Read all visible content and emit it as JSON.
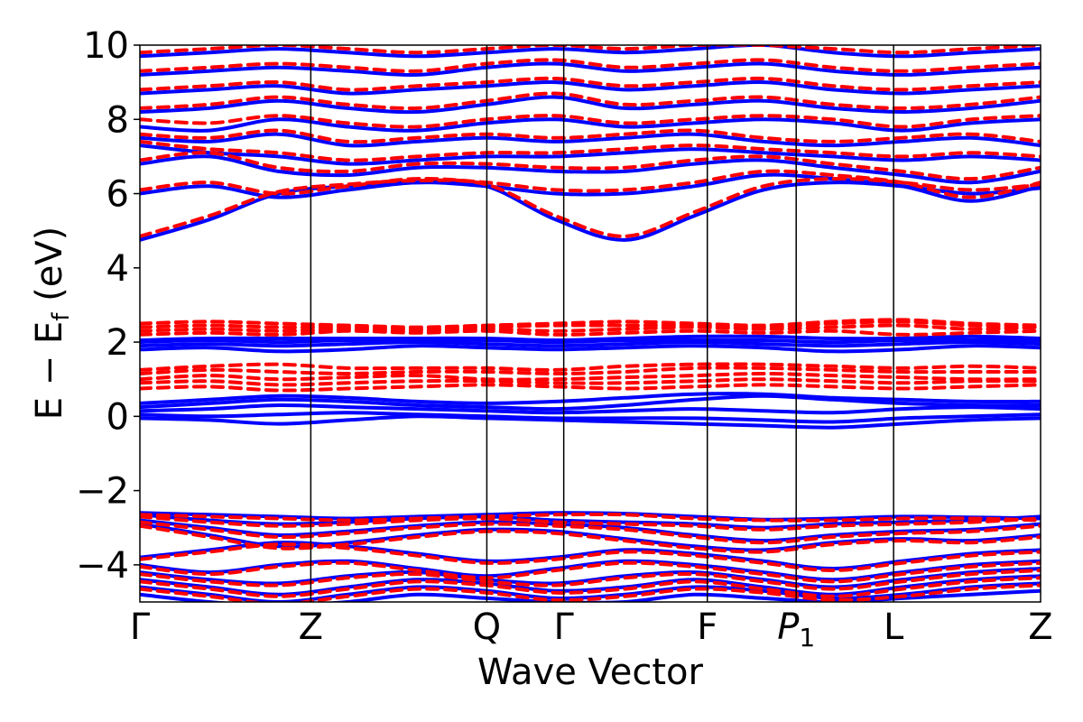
{
  "chart_data": {
    "type": "line",
    "xlabel": "Wave Vector",
    "ylabel": "E − E",
    "ylabel_sub": "f",
    "ylabel_unit": " (eV)",
    "ylim": [
      -5,
      10
    ],
    "yticks": [
      {
        "value": -4,
        "label": "−4"
      },
      {
        "value": -2,
        "label": "−2"
      },
      {
        "value": 0,
        "label": "0"
      },
      {
        "value": 2,
        "label": "2"
      },
      {
        "value": 4,
        "label": "4"
      },
      {
        "value": 6,
        "label": "6"
      },
      {
        "value": 8,
        "label": "8"
      },
      {
        "value": 10,
        "label": "10"
      }
    ],
    "kpath_positions": [
      0,
      1,
      2.03,
      2.48,
      3.32,
      3.84,
      4.41,
      5.27
    ],
    "xticks": [
      "Γ",
      "Z",
      "Q",
      "Γ",
      "F",
      "P",
      "L",
      "Z"
    ],
    "xtick_subscripts": [
      "",
      "",
      "",
      "",
      "",
      "1",
      "",
      ""
    ],
    "grid": false,
    "legend": "none",
    "series": [
      {
        "color": "#0000ff",
        "style": "solid",
        "valence_lines": [
          [
            -2.6,
            -2.65,
            -2.7,
            -2.75,
            -2.7,
            -2.65,
            -2.6,
            -2.62,
            -2.7,
            -2.78,
            -2.75,
            -2.7,
            -2.72,
            -2.75
          ],
          [
            -2.65,
            -2.8,
            -2.9,
            -2.85,
            -2.75,
            -2.7,
            -2.8,
            -2.85,
            -2.9,
            -3.0,
            -2.9,
            -2.85,
            -2.8,
            -2.7
          ],
          [
            -2.8,
            -3.0,
            -3.2,
            -3.1,
            -2.95,
            -2.85,
            -2.9,
            -3.0,
            -3.2,
            -3.35,
            -3.2,
            -3.1,
            -3.05,
            -2.9
          ],
          [
            -2.9,
            -3.2,
            -3.5,
            -3.4,
            -3.2,
            -3.05,
            -3.1,
            -3.3,
            -3.5,
            -3.6,
            -3.4,
            -3.3,
            -3.35,
            -3.2
          ],
          [
            -3.8,
            -3.6,
            -3.4,
            -3.5,
            -3.7,
            -3.9,
            -3.8,
            -3.6,
            -3.7,
            -3.9,
            -4.1,
            -3.9,
            -3.7,
            -3.6
          ],
          [
            -4.0,
            -4.2,
            -4.0,
            -3.9,
            -4.1,
            -4.3,
            -4.1,
            -3.9,
            -4.0,
            -4.2,
            -4.4,
            -4.2,
            -4.0,
            -3.9
          ],
          [
            -4.2,
            -4.4,
            -4.5,
            -4.3,
            -4.2,
            -4.4,
            -4.5,
            -4.3,
            -4.2,
            -4.4,
            -4.6,
            -4.4,
            -4.2,
            -4.1
          ],
          [
            -4.4,
            -4.6,
            -4.8,
            -4.6,
            -4.4,
            -4.5,
            -4.7,
            -4.6,
            -4.4,
            -4.6,
            -4.8,
            -4.6,
            -4.4,
            -4.3
          ],
          [
            -4.6,
            -4.8,
            -5.0,
            -4.8,
            -4.6,
            -4.7,
            -4.9,
            -4.8,
            -4.6,
            -4.7,
            -4.9,
            -4.8,
            -4.6,
            -4.5
          ],
          [
            -4.8,
            -5.0,
            -5.1,
            -5.0,
            -4.8,
            -4.9,
            -5.0,
            -5.0,
            -4.8,
            -4.9,
            -5.0,
            -4.9,
            -4.8,
            -4.7
          ]
        ],
        "mid_lines": [
          [
            -0.05,
            -0.1,
            -0.2,
            -0.1,
            0.0,
            -0.05,
            -0.1,
            -0.15,
            -0.2,
            -0.25,
            -0.3,
            -0.2,
            -0.1,
            -0.05
          ],
          [
            0.05,
            0.0,
            0.05,
            0.1,
            0.05,
            0.0,
            -0.05,
            -0.05,
            -0.05,
            -0.1,
            -0.15,
            -0.05,
            0.0,
            0.05
          ],
          [
            0.15,
            0.2,
            0.3,
            0.25,
            0.2,
            0.15,
            0.1,
            0.15,
            0.2,
            0.15,
            0.1,
            0.2,
            0.25,
            0.2
          ],
          [
            0.25,
            0.35,
            0.45,
            0.4,
            0.3,
            0.25,
            0.2,
            0.3,
            0.45,
            0.55,
            0.45,
            0.35,
            0.3,
            0.3
          ],
          [
            0.35,
            0.45,
            0.55,
            0.5,
            0.4,
            0.35,
            0.4,
            0.5,
            0.6,
            0.6,
            0.5,
            0.45,
            0.4,
            0.4
          ]
        ],
        "upper_mid_lines": [
          [
            1.8,
            1.85,
            1.75,
            1.8,
            1.9,
            1.85,
            1.8,
            1.85,
            1.9,
            1.85,
            1.75,
            1.8,
            1.9,
            1.85
          ],
          [
            1.9,
            1.95,
            1.9,
            1.95,
            2.0,
            1.95,
            1.9,
            1.95,
            2.0,
            1.95,
            1.9,
            1.95,
            2.0,
            1.95
          ],
          [
            2.0,
            2.05,
            2.0,
            2.05,
            2.05,
            2.05,
            2.0,
            2.05,
            2.05,
            2.05,
            2.0,
            2.05,
            2.05,
            2.05
          ],
          [
            2.05,
            2.1,
            2.1,
            2.1,
            2.1,
            2.1,
            2.05,
            2.1,
            2.15,
            2.15,
            2.1,
            2.1,
            2.15,
            2.1
          ]
        ],
        "conduction_lines": [
          [
            4.75,
            5.3,
            6.0,
            6.2,
            6.3,
            6.2,
            5.3,
            4.75,
            5.4,
            6.1,
            6.3,
            6.2,
            6.0,
            6.15
          ],
          [
            6.0,
            6.2,
            5.9,
            6.1,
            6.3,
            6.2,
            6.0,
            6.0,
            6.2,
            6.5,
            6.4,
            6.2,
            5.8,
            6.2
          ],
          [
            6.8,
            7.0,
            6.6,
            6.5,
            6.7,
            6.7,
            6.6,
            6.6,
            6.8,
            6.9,
            6.7,
            6.5,
            6.3,
            6.6
          ],
          [
            7.3,
            7.1,
            7.0,
            6.8,
            6.9,
            7.0,
            7.0,
            7.1,
            7.2,
            7.1,
            7.0,
            6.9,
            7.0,
            6.9
          ],
          [
            7.5,
            7.4,
            7.6,
            7.3,
            7.4,
            7.5,
            7.4,
            7.5,
            7.6,
            7.4,
            7.3,
            7.4,
            7.5,
            7.3
          ],
          [
            7.8,
            7.7,
            8.0,
            7.8,
            7.7,
            7.9,
            8.0,
            7.8,
            7.9,
            8.0,
            7.9,
            7.7,
            7.9,
            8.0
          ],
          [
            8.2,
            8.3,
            8.5,
            8.3,
            8.2,
            8.4,
            8.6,
            8.3,
            8.4,
            8.5,
            8.3,
            8.2,
            8.3,
            8.5
          ],
          [
            8.7,
            8.8,
            8.9,
            8.7,
            8.8,
            8.9,
            9.0,
            8.8,
            8.9,
            9.0,
            8.8,
            8.7,
            8.8,
            8.9
          ],
          [
            9.2,
            9.3,
            9.4,
            9.3,
            9.2,
            9.4,
            9.5,
            9.3,
            9.4,
            9.5,
            9.3,
            9.2,
            9.3,
            9.4
          ],
          [
            9.7,
            9.8,
            9.9,
            9.8,
            9.7,
            9.8,
            9.9,
            9.8,
            9.9,
            10.0,
            9.8,
            9.7,
            9.8,
            9.9
          ]
        ]
      },
      {
        "color": "#ff0000",
        "style": "dashed",
        "valence_lines": [
          [
            -2.65,
            -2.7,
            -2.75,
            -2.8,
            -2.75,
            -2.7,
            -2.65,
            -2.65,
            -2.75,
            -2.8,
            -2.8,
            -2.75,
            -2.75,
            -2.8
          ],
          [
            -2.7,
            -2.85,
            -2.95,
            -2.9,
            -2.8,
            -2.75,
            -2.85,
            -2.9,
            -2.95,
            -3.05,
            -2.95,
            -2.9,
            -2.85,
            -2.75
          ],
          [
            -2.85,
            -3.05,
            -3.25,
            -3.15,
            -3.0,
            -2.9,
            -2.95,
            -3.05,
            -3.25,
            -3.4,
            -3.25,
            -3.15,
            -3.1,
            -2.95
          ],
          [
            -2.95,
            -3.25,
            -3.55,
            -3.45,
            -3.25,
            -3.1,
            -3.15,
            -3.35,
            -3.55,
            -3.65,
            -3.45,
            -3.35,
            -3.4,
            -3.25
          ],
          [
            -3.85,
            -3.65,
            -3.45,
            -3.55,
            -3.75,
            -3.95,
            -3.85,
            -3.65,
            -3.75,
            -3.95,
            -4.15,
            -3.95,
            -3.75,
            -3.65
          ],
          [
            -4.05,
            -4.25,
            -4.05,
            -3.95,
            -4.15,
            -4.35,
            -4.15,
            -3.95,
            -4.05,
            -4.25,
            -4.45,
            -4.25,
            -4.05,
            -3.95
          ],
          [
            -4.25,
            -4.45,
            -4.55,
            -4.35,
            -4.25,
            -4.45,
            -4.55,
            -4.35,
            -4.25,
            -4.45,
            -4.65,
            -4.45,
            -4.25,
            -4.15
          ],
          [
            -4.45,
            -4.65,
            -4.85,
            -4.65,
            -4.45,
            -4.55,
            -4.75,
            -4.65,
            -4.45,
            -4.65,
            -4.85,
            -4.65,
            -4.45,
            -4.35
          ],
          [
            -4.65,
            -4.85,
            -5.05,
            -4.85,
            -4.65,
            -4.75,
            -4.95,
            -4.85,
            -4.65,
            -4.75,
            -4.95,
            -4.85,
            -4.65,
            -4.55
          ]
        ],
        "mid_lines": [
          [
            0.75,
            0.8,
            0.7,
            0.75,
            0.8,
            0.85,
            0.8,
            0.75,
            0.8,
            0.85,
            0.8,
            0.75,
            0.8,
            0.85
          ],
          [
            0.9,
            0.95,
            0.85,
            0.9,
            0.95,
            0.95,
            0.9,
            0.9,
            0.95,
            1.0,
            0.95,
            0.9,
            0.95,
            0.95
          ],
          [
            1.0,
            1.1,
            1.0,
            1.05,
            1.1,
            1.0,
            1.0,
            1.05,
            1.1,
            1.15,
            1.1,
            1.05,
            1.0,
            1.0
          ],
          [
            1.15,
            1.25,
            1.2,
            1.15,
            1.2,
            1.2,
            1.15,
            1.2,
            1.3,
            1.3,
            1.25,
            1.2,
            1.2,
            1.2
          ],
          [
            1.25,
            1.35,
            1.4,
            1.3,
            1.3,
            1.3,
            1.25,
            1.35,
            1.4,
            1.4,
            1.35,
            1.3,
            1.35,
            1.3
          ]
        ],
        "upper_mid_lines": [
          [
            2.2,
            2.25,
            2.2,
            2.3,
            2.25,
            2.3,
            2.2,
            2.25,
            2.3,
            2.25,
            2.3,
            2.2,
            2.25,
            2.3
          ],
          [
            2.3,
            2.35,
            2.3,
            2.35,
            2.3,
            2.35,
            2.3,
            2.35,
            2.4,
            2.35,
            2.4,
            2.45,
            2.35,
            2.4
          ],
          [
            2.4,
            2.45,
            2.4,
            2.4,
            2.35,
            2.4,
            2.45,
            2.45,
            2.45,
            2.4,
            2.5,
            2.55,
            2.45,
            2.4
          ],
          [
            2.5,
            2.55,
            2.5,
            2.45,
            2.4,
            2.45,
            2.5,
            2.55,
            2.5,
            2.45,
            2.55,
            2.6,
            2.5,
            2.45
          ]
        ],
        "conduction_lines": [
          [
            4.85,
            5.4,
            6.05,
            6.25,
            6.35,
            6.25,
            5.4,
            4.85,
            5.5,
            6.2,
            6.4,
            6.3,
            6.1,
            6.25
          ],
          [
            6.1,
            6.3,
            6.0,
            6.2,
            6.4,
            6.3,
            6.1,
            6.1,
            6.3,
            6.6,
            6.5,
            6.3,
            5.9,
            6.3
          ],
          [
            6.9,
            7.1,
            6.7,
            6.6,
            6.8,
            6.8,
            6.7,
            6.7,
            6.9,
            7.0,
            6.8,
            6.6,
            6.4,
            6.7
          ],
          [
            7.4,
            7.2,
            7.1,
            6.9,
            7.0,
            7.1,
            7.1,
            7.2,
            7.3,
            7.2,
            7.1,
            7.0,
            7.1,
            7.0
          ],
          [
            7.6,
            7.5,
            7.7,
            7.4,
            7.5,
            7.6,
            7.5,
            7.6,
            7.7,
            7.5,
            7.4,
            7.5,
            7.6,
            7.4
          ],
          [
            8.0,
            7.9,
            8.1,
            7.9,
            7.8,
            8.0,
            8.1,
            7.9,
            8.0,
            8.1,
            8.0,
            7.8,
            8.0,
            8.1
          ],
          [
            8.3,
            8.4,
            8.6,
            8.4,
            8.3,
            8.5,
            8.7,
            8.4,
            8.5,
            8.6,
            8.4,
            8.3,
            8.4,
            8.6
          ],
          [
            8.8,
            8.9,
            9.0,
            8.8,
            8.9,
            9.0,
            9.1,
            8.9,
            9.0,
            9.1,
            8.9,
            8.8,
            8.9,
            9.0
          ],
          [
            9.3,
            9.4,
            9.5,
            9.4,
            9.3,
            9.5,
            9.6,
            9.4,
            9.5,
            9.6,
            9.4,
            9.3,
            9.4,
            9.5
          ],
          [
            9.8,
            9.9,
            10.0,
            9.9,
            9.8,
            9.9,
            10.0,
            9.9,
            10.0,
            10.0,
            9.9,
            9.8,
            9.9,
            10.0
          ]
        ]
      }
    ]
  }
}
